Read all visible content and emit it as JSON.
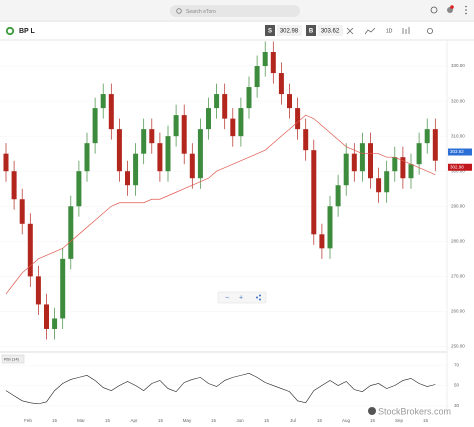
{
  "top_bar": {
    "search_placeholder": "Search eToro"
  },
  "instrument": {
    "name": "BP L",
    "sell_label": "S",
    "sell_price": 302.98,
    "buy_label": "B",
    "buy_price": 303.62,
    "timeframe": "1D"
  },
  "chart": {
    "type": "candlestick",
    "up_color": "#3d8b3d",
    "down_color": "#b3261e",
    "ma_color": "#e05a4f",
    "ylim": [
      249,
      336
    ],
    "yticks": [
      {
        "value": 330,
        "label": "330.00"
      },
      {
        "value": 320,
        "label": "320.00"
      },
      {
        "value": 310,
        "label": "310.00"
      },
      {
        "value": 300,
        "label": "300.00"
      },
      {
        "value": 290,
        "label": "290.00"
      },
      {
        "value": 280,
        "label": "280.00"
      },
      {
        "value": 270,
        "label": "270.00"
      },
      {
        "value": 260,
        "label": "260.00"
      },
      {
        "value": 250,
        "label": "250.00"
      }
    ],
    "candles": [
      [
        305,
        308,
        297,
        300
      ],
      [
        300,
        303,
        289,
        292
      ],
      [
        292,
        295,
        282,
        285
      ],
      [
        285,
        288,
        267,
        270
      ],
      [
        270,
        273,
        259,
        262
      ],
      [
        262,
        265,
        252,
        255
      ],
      [
        255,
        261,
        252,
        258
      ],
      [
        258,
        278,
        255,
        275
      ],
      [
        275,
        293,
        272,
        290
      ],
      [
        290,
        303,
        287,
        300
      ],
      [
        300,
        311,
        297,
        308
      ],
      [
        308,
        321,
        305,
        318
      ],
      [
        318,
        325,
        315,
        322
      ],
      [
        322,
        325,
        309,
        312
      ],
      [
        312,
        315,
        297,
        300
      ],
      [
        300,
        303,
        293,
        296
      ],
      [
        296,
        308,
        293,
        305
      ],
      [
        305,
        315,
        302,
        312
      ],
      [
        312,
        315,
        305,
        308
      ],
      [
        308,
        311,
        297,
        300
      ],
      [
        300,
        313,
        297,
        310
      ],
      [
        310,
        319,
        307,
        316
      ],
      [
        316,
        319,
        302,
        305
      ],
      [
        305,
        308,
        295,
        298
      ],
      [
        298,
        315,
        295,
        312
      ],
      [
        312,
        321,
        309,
        318
      ],
      [
        318,
        325,
        315,
        322
      ],
      [
        322,
        325,
        312,
        315
      ],
      [
        315,
        318,
        307,
        310
      ],
      [
        310,
        321,
        307,
        318
      ],
      [
        318,
        327,
        315,
        324
      ],
      [
        324,
        333,
        321,
        330
      ],
      [
        330,
        337,
        327,
        334
      ],
      [
        334,
        337,
        325,
        328
      ],
      [
        328,
        331,
        319,
        322
      ],
      [
        322,
        325,
        315,
        318
      ],
      [
        318,
        321,
        309,
        312
      ],
      [
        312,
        315,
        303,
        306
      ],
      [
        306,
        309,
        279,
        282
      ],
      [
        282,
        285,
        275,
        278
      ],
      [
        278,
        293,
        275,
        290
      ],
      [
        290,
        299,
        287,
        296
      ],
      [
        296,
        308,
        293,
        305
      ],
      [
        305,
        308,
        297,
        300
      ],
      [
        300,
        311,
        297,
        308
      ],
      [
        308,
        311,
        295,
        298
      ],
      [
        298,
        301,
        291,
        294
      ],
      [
        294,
        303,
        291,
        300
      ],
      [
        300,
        307,
        297,
        304
      ],
      [
        304,
        307,
        295,
        298
      ],
      [
        298,
        305,
        295,
        302
      ],
      [
        302,
        311,
        299,
        308
      ],
      [
        308,
        315,
        305,
        312
      ],
      [
        312,
        315,
        300,
        303
      ]
    ],
    "ma": [
      265,
      268,
      271,
      273,
      275,
      276,
      277,
      278,
      280,
      282,
      284,
      286,
      288,
      290,
      291,
      291,
      291,
      291,
      292,
      292,
      293,
      294,
      295,
      296,
      297,
      298,
      300,
      301,
      302,
      303,
      304,
      305,
      306,
      308,
      310,
      312,
      314,
      316,
      315,
      313,
      311,
      309,
      307,
      306,
      305,
      305,
      305,
      304,
      304,
      303,
      302,
      301,
      300,
      299
    ],
    "xlabels": [
      "Feb",
      "15",
      "Mar",
      "15",
      "Apr",
      "15",
      "May",
      "15",
      "Jun",
      "15",
      "Jul",
      "15",
      "Aug",
      "15",
      "Sep",
      "15"
    ]
  },
  "rsi": {
    "label": "RSI (14)",
    "ylim": [
      24,
      80
    ],
    "yticks": [
      30,
      50,
      70
    ],
    "values": [
      45,
      40,
      35,
      33,
      32,
      34,
      45,
      52,
      56,
      58,
      60,
      55,
      48,
      45,
      50,
      54,
      50,
      45,
      52,
      55,
      47,
      44,
      53,
      56,
      58,
      52,
      49,
      55,
      58,
      60,
      62,
      58,
      53,
      50,
      47,
      44,
      35,
      33,
      45,
      50,
      55,
      50,
      54,
      46,
      44,
      50,
      52,
      47,
      50,
      55,
      57,
      52,
      49,
      51
    ]
  },
  "watermark": "StockBrokers.com"
}
